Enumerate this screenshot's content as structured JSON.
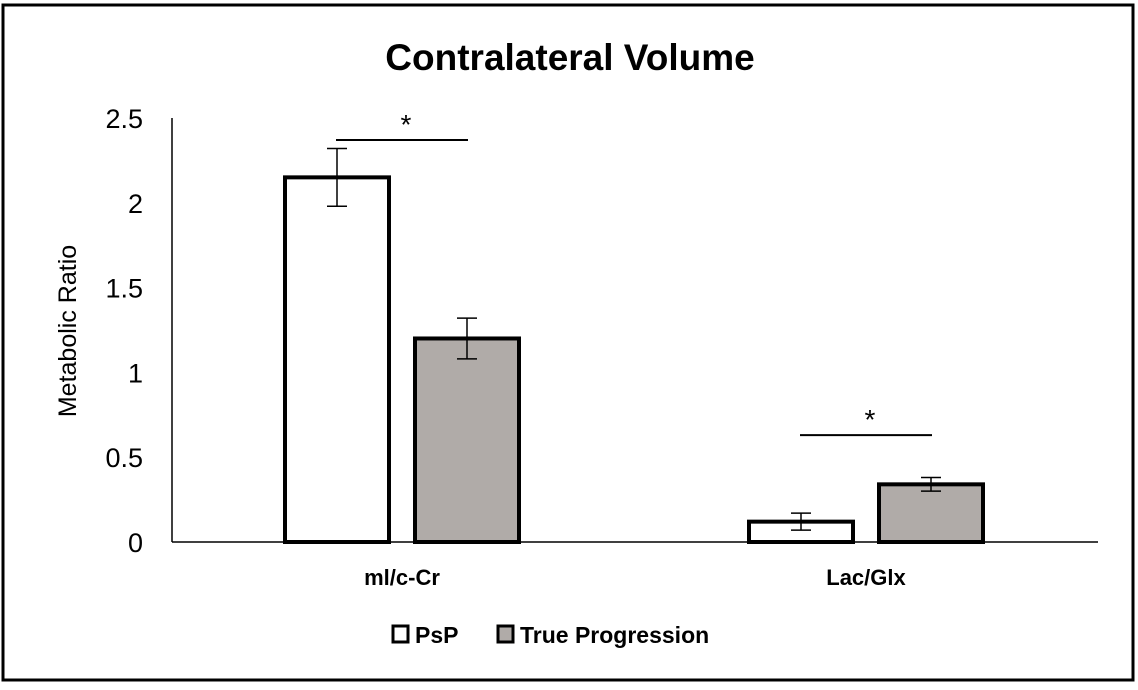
{
  "chart_data": {
    "type": "bar",
    "title": "Contralateral Volume",
    "xlabel": "",
    "ylabel": "Metabolic Ratio",
    "ylim": [
      0,
      2.5
    ],
    "yticks": [
      "0",
      "0.5",
      "1",
      "1.5",
      "2",
      "2.5"
    ],
    "categories": [
      "ml/c-Cr",
      "Lac/Glx"
    ],
    "series": [
      {
        "name": "PsP",
        "color": "#ffffff",
        "values": [
          2.15,
          0.12
        ],
        "errors": [
          0.17,
          0.05
        ]
      },
      {
        "name": "True Progression",
        "color": "#b0aba8",
        "values": [
          1.2,
          0.34
        ],
        "errors": [
          0.12,
          0.04
        ]
      }
    ],
    "significance": [
      {
        "category": "ml/c-Cr",
        "label": "*",
        "y": 2.37
      },
      {
        "category": "Lac/Glx",
        "label": "*",
        "y": 0.63
      }
    ],
    "legend_position": "bottom"
  }
}
